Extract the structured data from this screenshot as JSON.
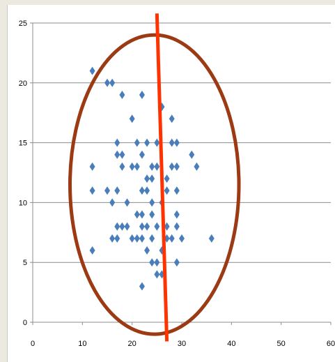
{
  "chart_data": {
    "type": "scatter",
    "title": "",
    "xlabel": "",
    "ylabel": "",
    "xlim": [
      0,
      60
    ],
    "ylim": [
      0,
      25
    ],
    "x_ticks": [
      0,
      10,
      20,
      30,
      40,
      50,
      60
    ],
    "y_ticks": [
      0,
      5,
      10,
      15,
      20,
      25
    ],
    "grid": "horizontal",
    "legend": "none",
    "marker": "diamond",
    "marker_color": "#4a7ebb",
    "points": [
      {
        "x": 12,
        "y": 21
      },
      {
        "x": 15,
        "y": 20
      },
      {
        "x": 16,
        "y": 20
      },
      {
        "x": 18,
        "y": 19
      },
      {
        "x": 22,
        "y": 19
      },
      {
        "x": 26,
        "y": 18
      },
      {
        "x": 20,
        "y": 17
      },
      {
        "x": 28,
        "y": 17
      },
      {
        "x": 17,
        "y": 15
      },
      {
        "x": 21,
        "y": 15
      },
      {
        "x": 23,
        "y": 15
      },
      {
        "x": 25,
        "y": 15
      },
      {
        "x": 28,
        "y": 15
      },
      {
        "x": 29,
        "y": 15
      },
      {
        "x": 17,
        "y": 14
      },
      {
        "x": 18,
        "y": 14
      },
      {
        "x": 22,
        "y": 14
      },
      {
        "x": 32,
        "y": 14
      },
      {
        "x": 12,
        "y": 13
      },
      {
        "x": 18,
        "y": 13
      },
      {
        "x": 20,
        "y": 13
      },
      {
        "x": 21,
        "y": 13
      },
      {
        "x": 24,
        "y": 13
      },
      {
        "x": 25,
        "y": 13
      },
      {
        "x": 28,
        "y": 13
      },
      {
        "x": 29,
        "y": 13
      },
      {
        "x": 33,
        "y": 13
      },
      {
        "x": 23,
        "y": 12
      },
      {
        "x": 24,
        "y": 12
      },
      {
        "x": 27,
        "y": 12
      },
      {
        "x": 12,
        "y": 11
      },
      {
        "x": 15,
        "y": 11
      },
      {
        "x": 17,
        "y": 11
      },
      {
        "x": 22,
        "y": 11
      },
      {
        "x": 23,
        "y": 11
      },
      {
        "x": 27,
        "y": 11
      },
      {
        "x": 29,
        "y": 11
      },
      {
        "x": 16,
        "y": 10
      },
      {
        "x": 19,
        "y": 10
      },
      {
        "x": 24,
        "y": 10
      },
      {
        "x": 26,
        "y": 10
      },
      {
        "x": 21,
        "y": 9
      },
      {
        "x": 22,
        "y": 9
      },
      {
        "x": 24,
        "y": 9
      },
      {
        "x": 29,
        "y": 9
      },
      {
        "x": 17,
        "y": 8
      },
      {
        "x": 18,
        "y": 8
      },
      {
        "x": 19,
        "y": 8
      },
      {
        "x": 22,
        "y": 8
      },
      {
        "x": 23,
        "y": 8
      },
      {
        "x": 25,
        "y": 8
      },
      {
        "x": 27,
        "y": 8
      },
      {
        "x": 29,
        "y": 8
      },
      {
        "x": 16,
        "y": 7
      },
      {
        "x": 17,
        "y": 7
      },
      {
        "x": 20,
        "y": 7
      },
      {
        "x": 21,
        "y": 7
      },
      {
        "x": 22,
        "y": 7
      },
      {
        "x": 24,
        "y": 7
      },
      {
        "x": 27,
        "y": 7
      },
      {
        "x": 28,
        "y": 7
      },
      {
        "x": 30,
        "y": 7
      },
      {
        "x": 36,
        "y": 7
      },
      {
        "x": 12,
        "y": 6
      },
      {
        "x": 23,
        "y": 6
      },
      {
        "x": 26,
        "y": 6
      },
      {
        "x": 24,
        "y": 5
      },
      {
        "x": 25,
        "y": 5
      },
      {
        "x": 29,
        "y": 5
      },
      {
        "x": 25,
        "y": 4
      },
      {
        "x": 26,
        "y": 4
      },
      {
        "x": 22,
        "y": 3
      }
    ],
    "annotations": [
      {
        "type": "ellipse",
        "color": "#9c3a14",
        "center": {
          "x": 24.5,
          "y": 11.5
        },
        "radius_x": 17,
        "radius_y": 12.5
      },
      {
        "type": "line",
        "color": "#ff3300",
        "from": {
          "x": 25,
          "y": 25.8
        },
        "to": {
          "x": 27,
          "y": -1.6
        }
      }
    ]
  }
}
